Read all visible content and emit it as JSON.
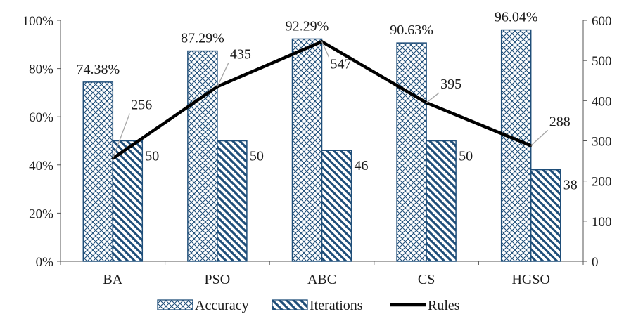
{
  "chart_data": {
    "type": "bar",
    "categories": [
      "BA",
      "PSO",
      "ABC",
      "CS",
      "HGSO"
    ],
    "series": [
      {
        "name": "Accuracy",
        "axis": "left",
        "kind": "bar",
        "pattern": "crosshatch",
        "values": [
          74.38,
          87.29,
          92.29,
          90.63,
          96.04
        ],
        "labels": [
          "74.38%",
          "87.29%",
          "92.29%",
          "90.63%",
          "96.04%"
        ]
      },
      {
        "name": "Iterations",
        "axis": "left",
        "kind": "bar",
        "pattern": "diagonal-stripes",
        "values": [
          50,
          50,
          46,
          50,
          38
        ],
        "labels": [
          "50",
          "50",
          "46",
          "50",
          "38"
        ]
      },
      {
        "name": "Rules",
        "axis": "right",
        "kind": "line",
        "values": [
          256,
          435,
          547,
          395,
          288
        ],
        "labels": [
          "256",
          "435",
          "547",
          "395",
          "288"
        ]
      }
    ],
    "y_left": {
      "ylim": [
        0,
        100
      ],
      "ticks": [
        "0%",
        "20%",
        "40%",
        "60%",
        "80%",
        "100%"
      ]
    },
    "y_right": {
      "ylim": [
        0,
        600
      ],
      "ticks": [
        "0",
        "100",
        "200",
        "300",
        "400",
        "500",
        "600"
      ]
    },
    "grid": false,
    "legend": "bottom",
    "colors": {
      "bar_border": "#1f4e79",
      "bar_pattern": "#1f4e79",
      "line": "#000000",
      "axis": "#555555"
    }
  }
}
